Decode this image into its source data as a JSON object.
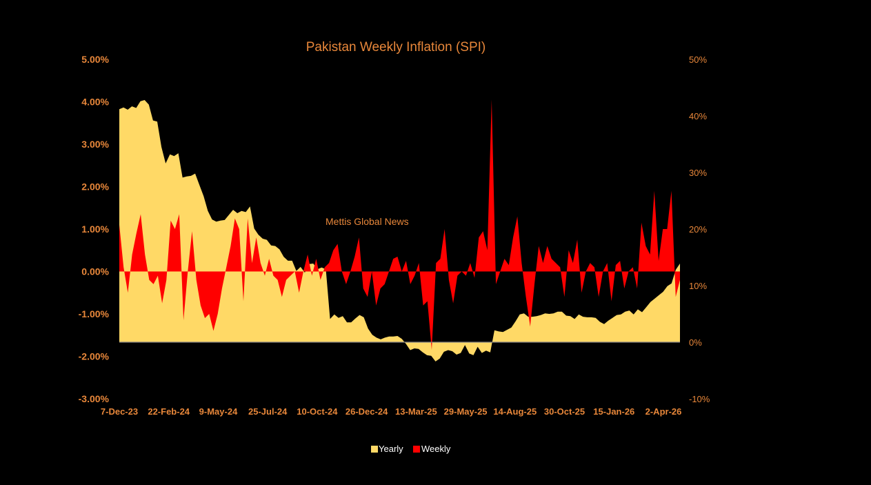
{
  "chart_data": {
    "type": "area",
    "title": "Pakistan Weekly Inflation (SPI)",
    "watermark": "Mettis Global News",
    "left_axis": {
      "series": "Weekly",
      "min": -3,
      "max": 5,
      "step": 1,
      "tick_labels": [
        "5.00%",
        "4.00%",
        "3.00%",
        "2.00%",
        "1.00%",
        "0.00%",
        "-1.00%",
        "-2.00%",
        "-3.00%"
      ]
    },
    "right_axis": {
      "series": "Yearly",
      "min": -10,
      "max": 50,
      "step": 10,
      "tick_labels": [
        "50%",
        "40%",
        "30%",
        "20%",
        "10%",
        "0%",
        "-10%"
      ]
    },
    "x_tick_labels": [
      "7-Dec-23",
      "22-Feb-24",
      "9-May-24",
      "25-Jul-24",
      "10-Oct-24",
      "26-Dec-24",
      "13-Mar-25",
      "29-May-25",
      "14-Aug-25",
      "30-Oct-25",
      "15-Jan-26",
      "2-Apr-26"
    ],
    "series": [
      {
        "name": "Yearly",
        "axis": "right",
        "color": "#ffd966",
        "values": [
          41.2,
          41.5,
          41.1,
          41.7,
          41.4,
          42.6,
          42.8,
          42.0,
          39.2,
          39.0,
          34.5,
          31.6,
          33.2,
          32.9,
          33.4,
          29.1,
          29.3,
          29.4,
          29.8,
          27.8,
          25.8,
          23.2,
          21.7,
          21.3,
          21.5,
          21.6,
          22.5,
          23.4,
          22.8,
          23.2,
          23.0,
          24.0,
          20.1,
          19.0,
          18.3,
          18.1,
          17.1,
          17.0,
          16.4,
          15.1,
          14.4,
          14.4,
          12.6,
          13.3,
          12.3,
          13.8,
          13.9,
          12.9,
          13.2,
          12.9,
          4.1,
          4.9,
          4.3,
          4.6,
          3.5,
          3.5,
          4.2,
          4.8,
          4.4,
          2.4,
          1.3,
          0.8,
          0.5,
          0.8,
          1.0,
          1.0,
          1.1,
          0.6,
          -0.3,
          -1.4,
          -1.1,
          -1.2,
          -1.8,
          -2.3,
          -2.4,
          -3.4,
          -2.9,
          -1.7,
          -1.4,
          -1.6,
          -2.2,
          -1.9,
          -0.5,
          -2.0,
          -2.3,
          -0.8,
          -1.9,
          -1.5,
          -1.8,
          2.1,
          1.9,
          1.8,
          2.2,
          2.6,
          3.7,
          4.9,
          5.1,
          4.5,
          4.5,
          4.6,
          4.8,
          5.1,
          5.0,
          5.1,
          5.4,
          5.4,
          4.7,
          4.6,
          4.1,
          4.9,
          4.5,
          4.4,
          4.4,
          4.3,
          3.6,
          3.2,
          3.8,
          4.3,
          4.8,
          4.9,
          5.4,
          5.6,
          4.9,
          5.8,
          5.3,
          6.2,
          7.1,
          7.7,
          8.3,
          8.9,
          9.9,
          10.4,
          12.8,
          13.9
        ]
      },
      {
        "name": "Weekly",
        "axis": "left",
        "color": "#ff0000",
        "values": [
          1.1,
          0.1,
          -0.5,
          0.4,
          0.9,
          1.35,
          0.4,
          -0.2,
          -0.3,
          -0.1,
          -0.75,
          -0.2,
          1.2,
          1.0,
          1.35,
          -1.15,
          0.0,
          0.95,
          -0.2,
          -0.8,
          -1.1,
          -1.0,
          -1.4,
          -1.0,
          -0.4,
          0.1,
          0.6,
          1.25,
          1.0,
          -0.7,
          1.25,
          0.2,
          0.8,
          0.2,
          -0.1,
          0.3,
          -0.1,
          -0.2,
          -0.6,
          -0.2,
          -0.1,
          0.0,
          -0.5,
          0.0,
          0.4,
          -0.1,
          0.3,
          -0.2,
          0.1,
          0.2,
          0.5,
          0.65,
          0.0,
          -0.3,
          0.0,
          0.35,
          0.8,
          -0.4,
          -0.6,
          0.0,
          -0.8,
          -0.4,
          -0.3,
          0.0,
          0.3,
          0.35,
          0.0,
          0.25,
          -0.3,
          -0.1,
          0.2,
          -0.8,
          -0.7,
          -1.85,
          0.2,
          0.3,
          1.0,
          -0.2,
          -0.75,
          -0.1,
          0.0,
          -0.1,
          0.2,
          -0.15,
          0.8,
          0.95,
          0.5,
          4.05,
          -0.3,
          0.0,
          0.3,
          0.15,
          0.8,
          1.3,
          0.2,
          -0.6,
          -1.3,
          -0.3,
          0.6,
          0.2,
          0.6,
          0.3,
          0.2,
          0.1,
          -0.6,
          0.5,
          0.2,
          0.75,
          -0.5,
          0.0,
          0.2,
          0.1,
          -0.6,
          0.0,
          0.2,
          -0.7,
          0.15,
          0.25,
          -0.4,
          0.0,
          0.1,
          -0.4,
          1.15,
          0.6,
          0.4,
          1.9,
          0.25,
          1.0,
          1.0,
          1.9,
          -0.6,
          -0.2
        ]
      }
    ]
  }
}
